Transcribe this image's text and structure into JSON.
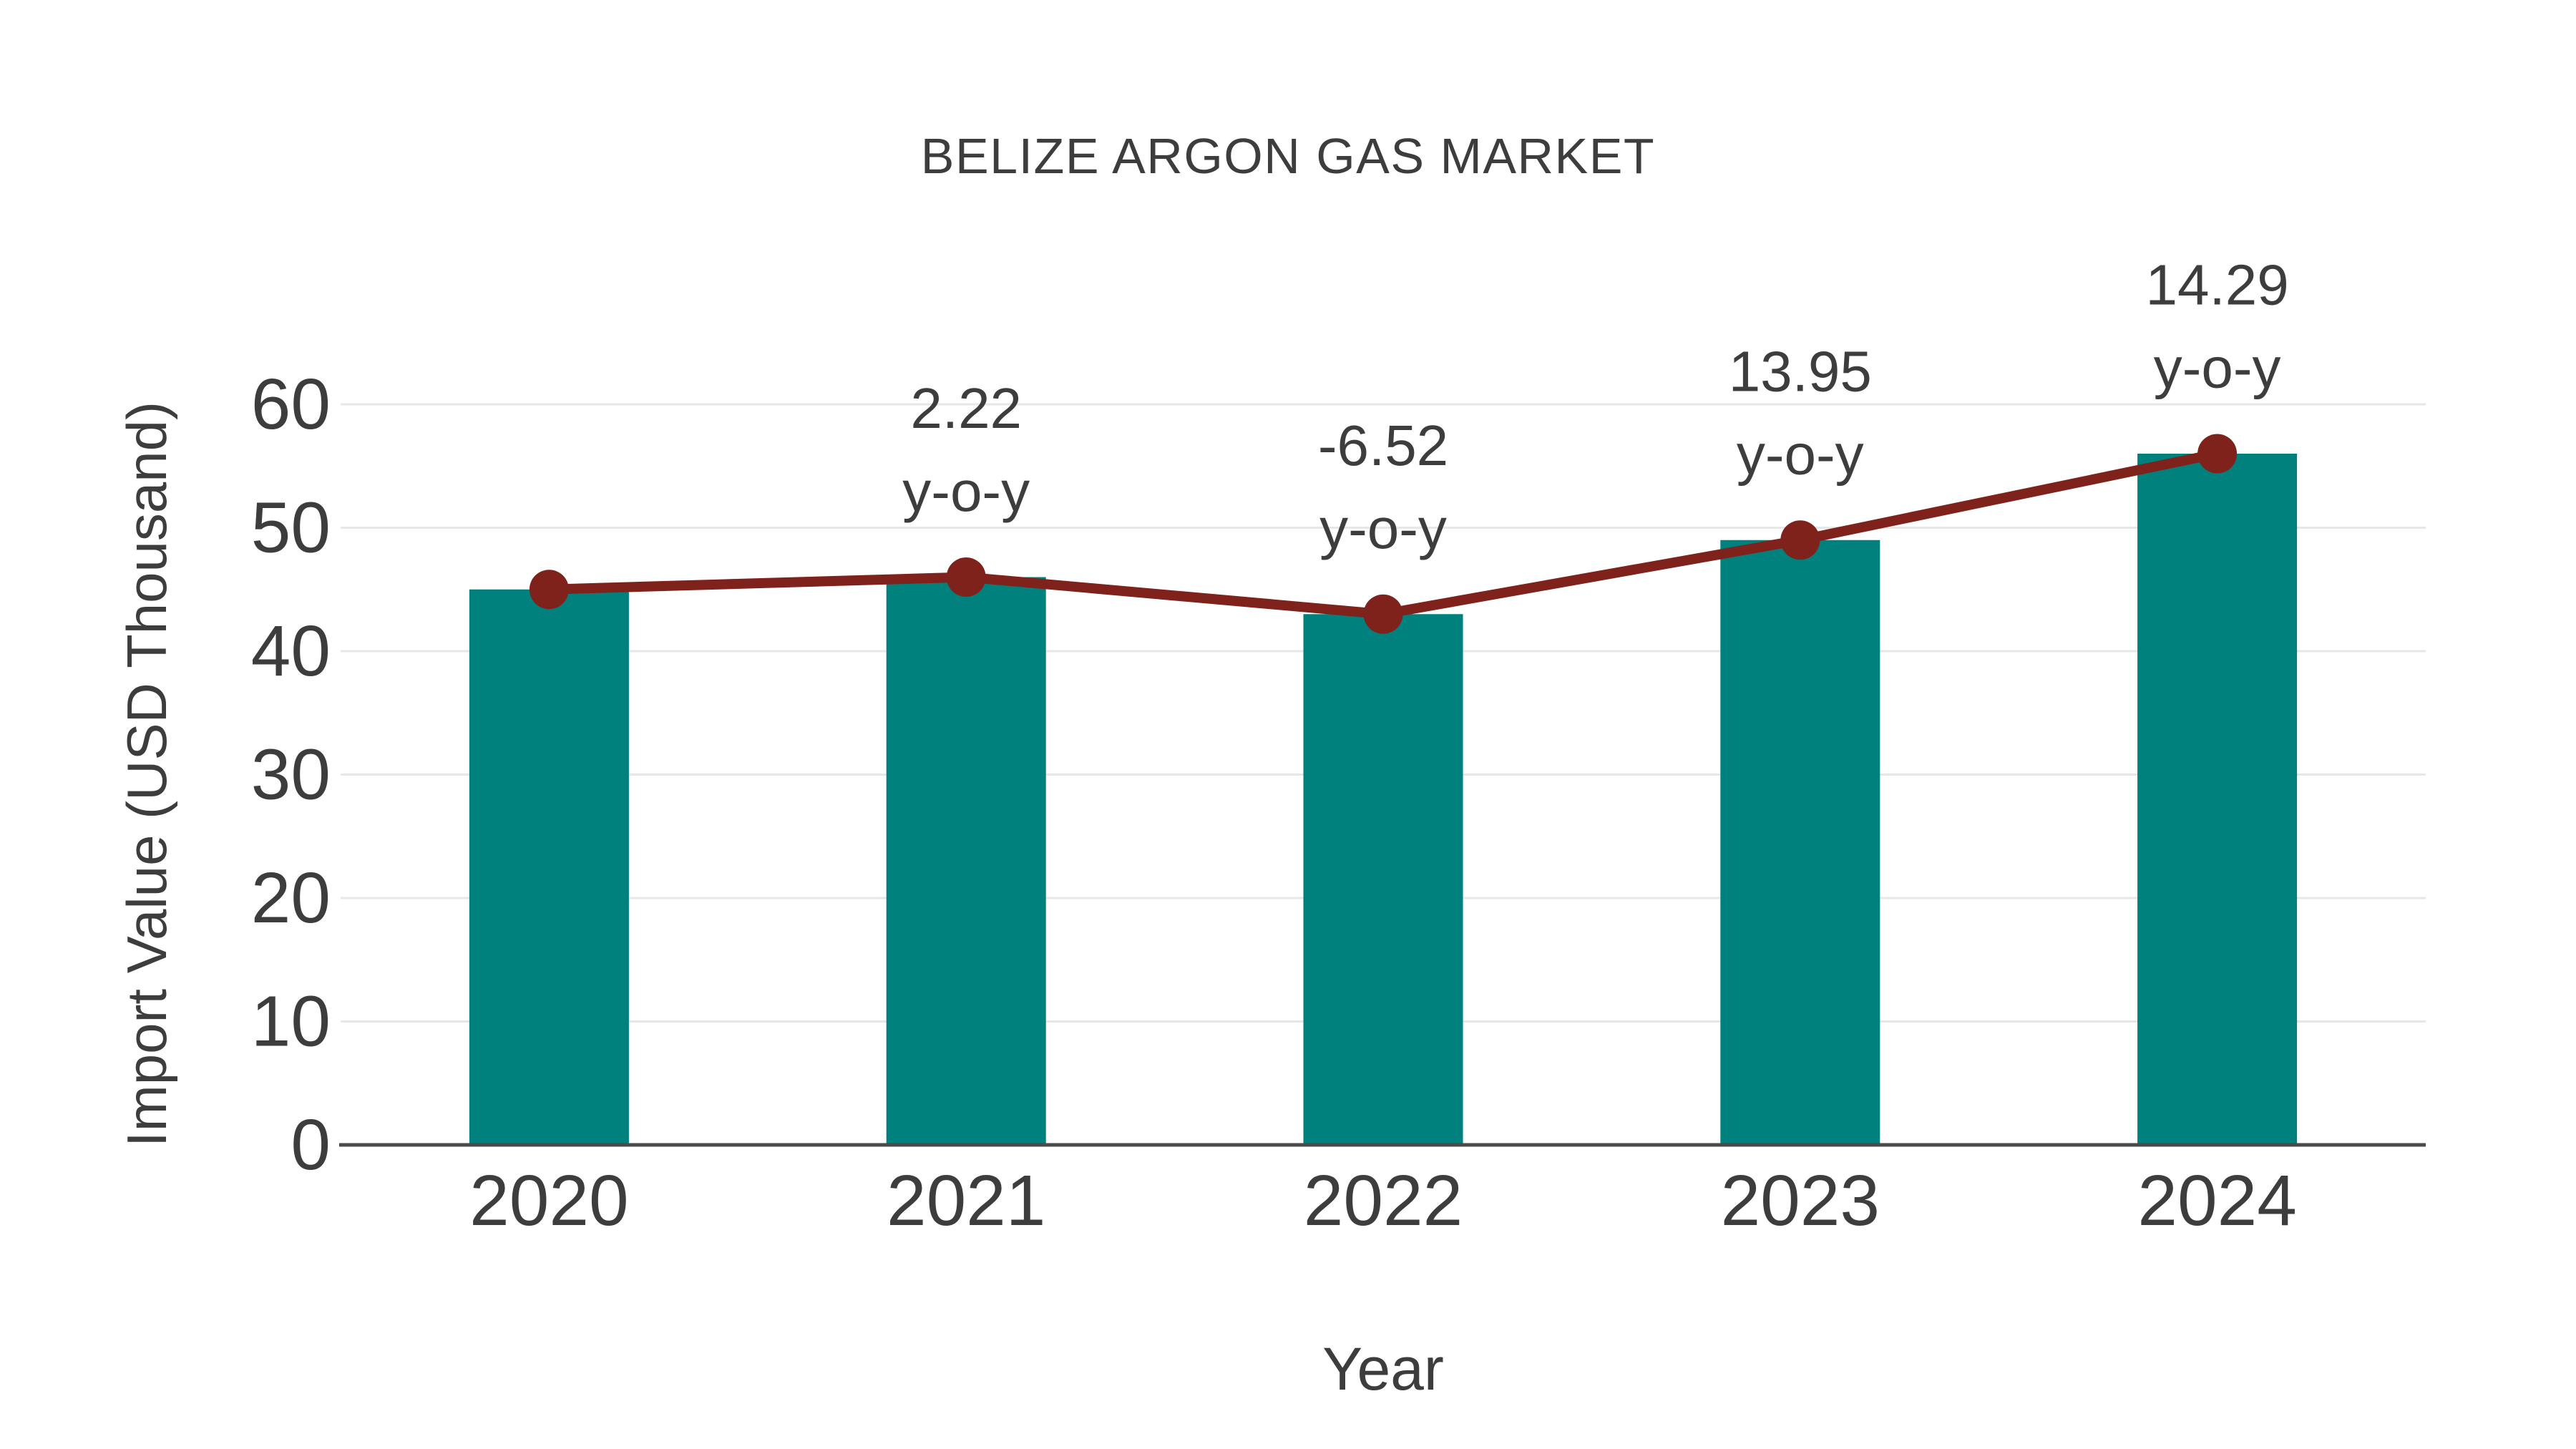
{
  "page": {
    "background": "#ffffff"
  },
  "chart_data": {
    "type": "bar",
    "title": "BELIZE ARGON GAS MARKET",
    "xlabel": "Year",
    "ylabel": "Import Value (USD Thousand)",
    "categories": [
      "2020",
      "2021",
      "2022",
      "2023",
      "2024"
    ],
    "series": [
      {
        "name": "import-value-bars",
        "type": "bar",
        "values": [
          45,
          46,
          43,
          49,
          56
        ]
      },
      {
        "name": "yoy-trend-line",
        "type": "line",
        "values": [
          45,
          46,
          43,
          49,
          56
        ]
      }
    ],
    "annotations": [
      {
        "category": "2021",
        "value_label": "2.22",
        "suffix_label": "y-o-y"
      },
      {
        "category": "2022",
        "value_label": "-6.52",
        "suffix_label": "y-o-y"
      },
      {
        "category": "2023",
        "value_label": "13.95",
        "suffix_label": "y-o-y"
      },
      {
        "category": "2024",
        "value_label": "14.29",
        "suffix_label": "y-o-y"
      }
    ],
    "ylim": [
      0,
      60
    ],
    "yticks": [
      0,
      10,
      20,
      30,
      40,
      50,
      60
    ],
    "grid": true,
    "legend_position": "none",
    "colors": {
      "bar": "#00817d",
      "line": "#7f221c",
      "marker": "#7f221c",
      "grid": "#e7e7e7",
      "axis": "#4a4a4a",
      "text": "#3d3d3d"
    }
  }
}
